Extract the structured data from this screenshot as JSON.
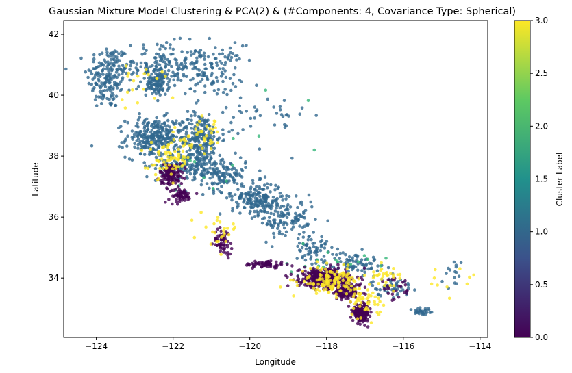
{
  "chart_data": {
    "type": "scatter",
    "title": "Gaussian Mixture Model Clustering & PCA(2) & (#Components: 4, Covariance Type: Spherical)",
    "xlabel": "Longitude",
    "ylabel": "Latitude",
    "xlim": [
      -124.85,
      -113.8
    ],
    "ylim": [
      32.05,
      42.45
    ],
    "xticks": [
      -124,
      -122,
      -120,
      -118,
      -116,
      -114
    ],
    "yticks": [
      34,
      36,
      38,
      40,
      42
    ],
    "xtick_labels": [
      "−124",
      "−122",
      "−120",
      "−118",
      "−116",
      "−114"
    ],
    "ytick_labels": [
      "34",
      "36",
      "38",
      "40",
      "42"
    ],
    "grid": false,
    "colorbar": {
      "label": "Cluster Label",
      "range": [
        0.0,
        3.0
      ],
      "ticks": [
        0.0,
        0.5,
        1.0,
        1.5,
        2.0,
        2.5,
        3.0
      ],
      "tick_labels": [
        "0.0",
        "0.5",
        "1.0",
        "1.5",
        "2.0",
        "2.5",
        "3.0"
      ],
      "colormap": "viridis",
      "colormap_stops": [
        "#440154",
        "#3b528b",
        "#21918c",
        "#5ec962",
        "#fde725"
      ]
    },
    "cluster_colors": {
      "0": "#440154",
      "1": "#31688e",
      "2": "#35b779",
      "3": "#fde725"
    },
    "point_alpha": 0.8,
    "point_groups": [
      {
        "cluster": 1,
        "n": 180,
        "center": [
          -123.7,
          40.6
        ],
        "spread": [
          0.45,
          0.9
        ]
      },
      {
        "cluster": 1,
        "n": 160,
        "center": [
          -122.3,
          41.0
        ],
        "spread": [
          0.9,
          0.6
        ]
      },
      {
        "cluster": 1,
        "n": 120,
        "center": [
          -121.0,
          40.8
        ],
        "spread": [
          0.7,
          0.7
        ]
      },
      {
        "cluster": 1,
        "n": 110,
        "center": [
          -122.4,
          40.4
        ],
        "spread": [
          0.25,
          0.35
        ]
      },
      {
        "cluster": 1,
        "n": 280,
        "center": [
          -122.5,
          38.6
        ],
        "spread": [
          0.6,
          0.55
        ]
      },
      {
        "cluster": 1,
        "n": 220,
        "center": [
          -121.3,
          38.6
        ],
        "spread": [
          0.45,
          0.7
        ]
      },
      {
        "cluster": 1,
        "n": 140,
        "center": [
          -121.6,
          37.7
        ],
        "spread": [
          0.7,
          0.35
        ]
      },
      {
        "cluster": 1,
        "n": 120,
        "center": [
          -120.7,
          37.4
        ],
        "spread": [
          0.5,
          0.45
        ]
      },
      {
        "cluster": 1,
        "n": 200,
        "center": [
          -119.8,
          36.6
        ],
        "spread": [
          0.55,
          0.45
        ]
      },
      {
        "cluster": 1,
        "n": 110,
        "center": [
          -119.0,
          35.9
        ],
        "spread": [
          0.6,
          0.55
        ]
      },
      {
        "cluster": 1,
        "n": 60,
        "center": [
          -118.4,
          35.0
        ],
        "spread": [
          0.35,
          0.35
        ]
      },
      {
        "cluster": 1,
        "n": 80,
        "center": [
          -117.3,
          34.5
        ],
        "spread": [
          0.6,
          0.3
        ]
      },
      {
        "cluster": 1,
        "n": 50,
        "center": [
          -116.3,
          33.7
        ],
        "spread": [
          0.45,
          0.25
        ]
      },
      {
        "cluster": 1,
        "n": 30,
        "center": [
          -115.5,
          32.9
        ],
        "spread": [
          0.25,
          0.15
        ]
      },
      {
        "cluster": 1,
        "n": 40,
        "center": [
          -119.6,
          39.2
        ],
        "spread": [
          0.9,
          0.8
        ]
      },
      {
        "cluster": 1,
        "n": 15,
        "center": [
          -114.7,
          34.2
        ],
        "spread": [
          0.25,
          0.5
        ]
      },
      {
        "cluster": 0,
        "n": 130,
        "center": [
          -122.05,
          37.4
        ],
        "spread": [
          0.25,
          0.3
        ]
      },
      {
        "cluster": 0,
        "n": 60,
        "center": [
          -121.8,
          36.7
        ],
        "spread": [
          0.25,
          0.2
        ]
      },
      {
        "cluster": 0,
        "n": 60,
        "center": [
          -120.7,
          35.2
        ],
        "spread": [
          0.2,
          0.35
        ]
      },
      {
        "cluster": 0,
        "n": 60,
        "center": [
          -119.6,
          34.45
        ],
        "spread": [
          0.45,
          0.1
        ]
      },
      {
        "cluster": 0,
        "n": 380,
        "center": [
          -118.1,
          34.0
        ],
        "spread": [
          0.5,
          0.25
        ]
      },
      {
        "cluster": 0,
        "n": 140,
        "center": [
          -117.5,
          33.6
        ],
        "spread": [
          0.35,
          0.3
        ]
      },
      {
        "cluster": 0,
        "n": 170,
        "center": [
          -117.1,
          32.85
        ],
        "spread": [
          0.18,
          0.22
        ]
      },
      {
        "cluster": 0,
        "n": 25,
        "center": [
          -116.2,
          33.6
        ],
        "spread": [
          0.4,
          0.3
        ]
      },
      {
        "cluster": 3,
        "n": 70,
        "center": [
          -122.1,
          37.9
        ],
        "spread": [
          0.45,
          0.5
        ]
      },
      {
        "cluster": 3,
        "n": 40,
        "center": [
          -121.2,
          38.6
        ],
        "spread": [
          0.5,
          0.5
        ]
      },
      {
        "cluster": 3,
        "n": 25,
        "center": [
          -120.8,
          35.6
        ],
        "spread": [
          0.4,
          0.4
        ]
      },
      {
        "cluster": 3,
        "n": 130,
        "center": [
          -117.9,
          33.9
        ],
        "spread": [
          0.65,
          0.35
        ]
      },
      {
        "cluster": 3,
        "n": 50,
        "center": [
          -117.0,
          33.2
        ],
        "spread": [
          0.35,
          0.4
        ]
      },
      {
        "cluster": 3,
        "n": 30,
        "center": [
          -116.5,
          34.1
        ],
        "spread": [
          0.4,
          0.25
        ]
      },
      {
        "cluster": 3,
        "n": 20,
        "center": [
          -122.8,
          40.3
        ],
        "spread": [
          0.8,
          0.8
        ]
      },
      {
        "cluster": 3,
        "n": 10,
        "center": [
          -114.8,
          33.8
        ],
        "spread": [
          0.6,
          0.6
        ]
      },
      {
        "cluster": 2,
        "n": 25,
        "center": [
          -118.0,
          34.3
        ],
        "spread": [
          0.9,
          0.5
        ]
      },
      {
        "cluster": 2,
        "n": 10,
        "center": [
          -121.0,
          37.5
        ],
        "spread": [
          1.0,
          1.0
        ]
      },
      {
        "cluster": 2,
        "n": 5,
        "center": [
          -119.5,
          39.3
        ],
        "spread": [
          1.2,
          1.5
        ]
      }
    ]
  }
}
